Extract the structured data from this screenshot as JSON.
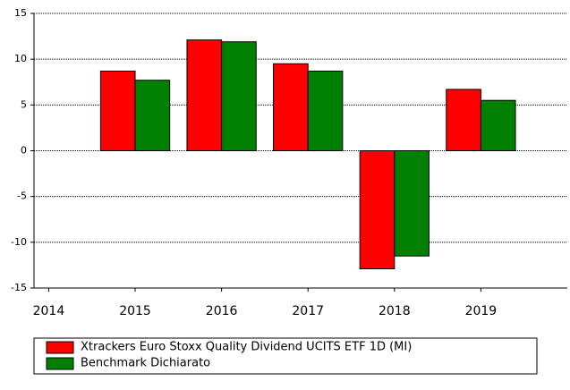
{
  "chart_data": {
    "type": "bar",
    "x": [
      2015,
      2016,
      2017,
      2018,
      2019
    ],
    "series": [
      {
        "name": "Xtrackers Euro Stoxx Quality Dividend UCITS ETF 1D (MI)",
        "color": "#ff0000",
        "values": [
          8.7,
          12.1,
          9.5,
          -12.9,
          6.7
        ]
      },
      {
        "name": "Benchmark Dichiarato",
        "color": "#008000",
        "values": [
          7.7,
          11.9,
          8.7,
          -11.5,
          5.5
        ]
      }
    ],
    "xlim": [
      2013.83,
      2020
    ],
    "xticks": [
      2014,
      2015,
      2016,
      2017,
      2018,
      2019
    ],
    "ylim": [
      -15,
      15
    ],
    "yticks": [
      -15,
      -10,
      -5,
      0,
      5,
      10,
      15
    ],
    "grid": true,
    "legend": "bottom"
  }
}
